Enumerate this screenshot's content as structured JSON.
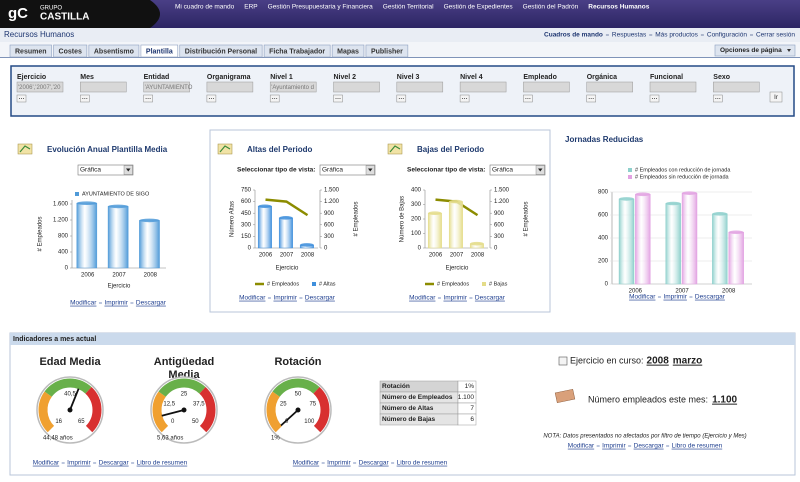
{
  "header": {
    "logo_mark": "gC",
    "logo_top": "GRUPO",
    "logo_bottom": "CASTILLA",
    "nav": [
      "Mi cuadro de mando",
      "ERP",
      "Gestión Presupuestaria y Financiera",
      "Gestión Territorial",
      "Gestión de Expedientes",
      "Gestión del Padrón",
      "Recursos Humanos"
    ],
    "nav_active": 6,
    "section": "Recursos Humanos",
    "links": [
      "Cuadros de mando",
      "Respuestas",
      "Más productos",
      "Configuración",
      "Cerrar sesión"
    ]
  },
  "tabs": [
    "Resumen",
    "Costes",
    "Absentismo",
    "Plantilla",
    "Distribución Personal",
    "Ficha Trabajador",
    "Mapas",
    "Publisher"
  ],
  "active_tab": 3,
  "page_options": "Opciones de página",
  "filters": [
    {
      "label": "Ejercicio",
      "value": "'2006','2007','20"
    },
    {
      "label": "Mes",
      "value": ""
    },
    {
      "label": "Entidad",
      "value": "'AYUNTAMIENTO"
    },
    {
      "label": "Organigrama",
      "value": ""
    },
    {
      "label": "Nivel 1",
      "value": "'Ayuntamiento d"
    },
    {
      "label": "Nivel 2",
      "value": ""
    },
    {
      "label": "Nivel 3",
      "value": ""
    },
    {
      "label": "Nivel 4",
      "value": ""
    },
    {
      "label": "Empleado",
      "value": ""
    },
    {
      "label": "Orgánica",
      "value": ""
    },
    {
      "label": "Funcional",
      "value": ""
    },
    {
      "label": "Sexo",
      "value": ""
    }
  ],
  "go": "Ir",
  "charts": [
    {
      "title": "Evolución Anual Plantilla Media",
      "select": "Gráfica",
      "xlabel": "Ejercicio",
      "ylabel": "# Empleados",
      "categories": [
        "2006",
        "2007",
        "2008"
      ],
      "series": [
        {
          "name": "AYUNTAMIENTO DE SIGO",
          "color": "#4f9ad8",
          "values": [
            1620,
            1540,
            1190
          ]
        }
      ],
      "ylim": [
        0,
        1700
      ],
      "yticks": [
        0,
        400,
        800,
        {
          "value": 1200,
          "label": "1.200"
        },
        {
          "value": 1600,
          "label": "1.600"
        }
      ],
      "links": [
        "Modificar",
        "Imprimir",
        "Descargar"
      ]
    },
    {
      "title": "Altas del Periodo",
      "view_label": "Seleccionar tipo de vista:",
      "select": "Gráfica",
      "xlabel": "Ejercicio",
      "ylabel": "Número Altas",
      "y2label": "# Empleados",
      "categories": [
        "2006",
        "2007",
        "2008"
      ],
      "series": [
        {
          "name": "# Empleados",
          "color": "#8c8c00",
          "type": "line",
          "axis": "y2",
          "values": [
            1250,
            1200,
            850
          ]
        },
        {
          "name": "# Altas",
          "color": "#3f8fdc",
          "values": [
            540,
            390,
            40
          ]
        }
      ],
      "ylim": [
        0,
        750
      ],
      "yticks": [
        0,
        150,
        300,
        450,
        600,
        750
      ],
      "y2lim": [
        0,
        1500
      ],
      "y2ticks": [
        0,
        300,
        600,
        900,
        {
          "value": 1200,
          "label": "1.200"
        },
        {
          "value": 1500,
          "label": "1.500"
        }
      ],
      "links": [
        "Modificar",
        "Imprimir",
        "Descargar"
      ]
    },
    {
      "title": "Bajas del Periodo",
      "view_label": "Seleccionar tipo de vista:",
      "select": "Gráfica",
      "xlabel": "Ejercicio",
      "ylabel": "Número de Bajas",
      "y2label": "# Empleados",
      "categories": [
        "2006",
        "2007",
        "2008"
      ],
      "series": [
        {
          "name": "# Empleados",
          "color": "#8c8c00",
          "type": "line",
          "axis": "y2",
          "values": [
            1250,
            1200,
            850
          ]
        },
        {
          "name": "# Bajas",
          "color": "#e4dc88",
          "values": [
            240,
            320,
            30
          ]
        }
      ],
      "ylim": [
        0,
        400
      ],
      "yticks": [
        0,
        100,
        200,
        300,
        400
      ],
      "y2lim": [
        0,
        1500
      ],
      "y2ticks": [
        0,
        300,
        600,
        900,
        {
          "value": 1200,
          "label": "1.200"
        },
        {
          "value": 1500,
          "label": "1.500"
        }
      ],
      "links": [
        "Modificar",
        "Imprimir",
        "Descargar"
      ]
    },
    {
      "title": "Jornadas Reducidas",
      "categories": [
        "2006",
        "2007",
        "2008"
      ],
      "series": [
        {
          "name": "# Empleados con reducción de jornada",
          "color": "#8ed0cc",
          "values": [
            740,
            700,
            610
          ]
        },
        {
          "name": "# Empleados sin reducción de jornada",
          "color": "#e2a2e2",
          "values": [
            780,
            790,
            450
          ]
        }
      ],
      "ylim": [
        0,
        800
      ],
      "yticks": [
        0,
        200,
        400,
        600,
        800
      ],
      "grid": true,
      "links": [
        "Modificar",
        "Imprimir",
        "Descargar"
      ]
    }
  ],
  "indicators": {
    "title": "Indicadores a mes actual",
    "gauges": [
      {
        "title": [
          "Edad Media"
        ],
        "value": 44.48,
        "value_label": "44,48 años",
        "ticks": [
          16,
          {
            "value": 40.5,
            "label": "40,5"
          },
          65
        ]
      },
      {
        "title": [
          "Antigüedad",
          "Media"
        ],
        "value": 5.63,
        "value_label": "5,63 años",
        "ticks": [
          0,
          {
            "value": 12.5,
            "label": "12,5"
          },
          25,
          {
            "value": 37.5,
            "label": "37,5"
          },
          50
        ]
      },
      {
        "title": [
          "Rotación"
        ],
        "value": 1,
        "value_label": "1%",
        "ticks": [
          0,
          25,
          50,
          75,
          100
        ]
      }
    ],
    "table": [
      [
        "Rotación",
        "1%"
      ],
      [
        "Número de Empleados",
        "1.100"
      ],
      [
        "Número de Altas",
        "7"
      ],
      [
        "Número de Bajas",
        "6"
      ]
    ],
    "current": {
      "label": "Ejercicio en curso:",
      "year": "2008",
      "month": "marzo"
    },
    "employees": {
      "label": "Número empleados este mes:",
      "value": "1.100"
    },
    "note": "NOTA: Datos presentados no afectados por filtro de tiempo (Ejercicio y Mes)",
    "link_groups": [
      [
        "Modificar",
        "Imprimir",
        "Descargar",
        "Libro de resumen"
      ],
      [
        "Modificar",
        "Imprimir",
        "Descargar",
        "Libro de resumen"
      ],
      [
        "Modificar",
        "Imprimir",
        "Descargar",
        "Libro de resumen"
      ]
    ]
  }
}
